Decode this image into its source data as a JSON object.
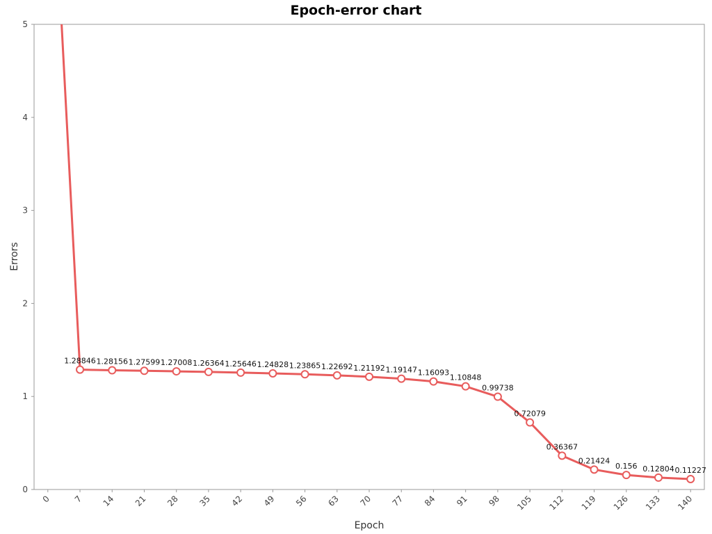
{
  "chart_data": {
    "type": "line",
    "title": "Epoch-error chart",
    "xlabel": "Epoch",
    "ylabel": "Errors",
    "xlim": [
      -3,
      143
    ],
    "ylim": [
      0,
      5
    ],
    "x_ticks": [
      0,
      7,
      14,
      21,
      28,
      35,
      42,
      49,
      56,
      63,
      70,
      77,
      84,
      91,
      98,
      105,
      112,
      119,
      126,
      133,
      140
    ],
    "y_ticks": [
      0,
      1,
      2,
      3,
      4,
      5
    ],
    "grid": false,
    "legend": "none",
    "colors": {
      "line": "#e85c5c",
      "marker_fill": "#ffffff",
      "plot_border": "#999999"
    },
    "series": [
      {
        "x": [
          3,
          7,
          14,
          21,
          28,
          35,
          42,
          49,
          56,
          63,
          70,
          77,
          84,
          91,
          98,
          105,
          112,
          119,
          126,
          133,
          140
        ],
        "y": [
          5.0,
          1.28846,
          1.28156,
          1.27599,
          1.27008,
          1.26364,
          1.25646,
          1.24828,
          1.23865,
          1.22692,
          1.21192,
          1.19147,
          1.16093,
          1.10848,
          0.99738,
          0.72079,
          0.36367,
          0.21424,
          0.156,
          0.12804,
          0.11227
        ],
        "marker_from_index": 1,
        "labels": [
          "",
          "1.28846",
          "1.28156",
          "1.27599",
          "1.27008",
          "1.26364",
          "1.25646",
          "1.24828",
          "1.23865",
          "1.22692",
          "1.21192",
          "1.19147",
          "1.16093",
          "1.10848",
          "0.99738",
          "0.72079",
          "0.36367",
          "0.21424",
          "0.156",
          "0.12804",
          "0.11227"
        ]
      }
    ]
  }
}
